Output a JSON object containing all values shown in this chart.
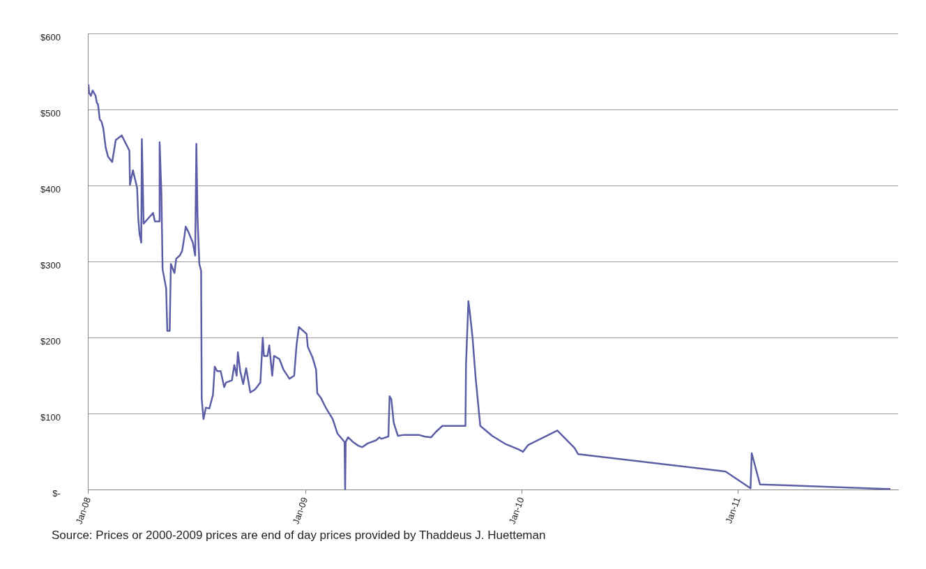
{
  "chart_data": {
    "type": "line",
    "color": "#5b5ea6",
    "grid": "y",
    "legend": false,
    "marker": "none",
    "x": [
      "2008-01-01",
      "2008-01-02",
      "2008-01-05",
      "2008-01-08",
      "2008-01-13",
      "2008-01-15",
      "2008-01-17",
      "2008-01-20",
      "2008-01-23",
      "2008-01-26",
      "2008-01-30",
      "2008-02-03",
      "2008-02-10",
      "2008-02-16",
      "2008-02-26",
      "2008-03-10",
      "2008-03-11",
      "2008-03-16",
      "2008-03-23",
      "2008-03-25",
      "2008-03-27",
      "2008-03-30",
      "2008-03-31",
      "2008-04-03",
      "2008-04-11",
      "2008-04-19",
      "2008-04-22",
      "2008-04-29",
      "2008-04-30",
      "2008-05-03",
      "2008-05-05",
      "2008-05-11",
      "2008-05-13",
      "2008-05-17",
      "2008-05-19",
      "2008-05-25",
      "2008-05-28",
      "2008-06-03",
      "2008-06-07",
      "2008-06-11",
      "2008-06-13",
      "2008-06-17",
      "2008-06-25",
      "2008-06-29",
      "2008-07-01",
      "2008-07-03",
      "2008-07-06",
      "2008-07-09",
      "2008-07-10",
      "2008-07-13",
      "2008-07-17",
      "2008-07-23",
      "2008-07-29",
      "2008-08-01",
      "2008-08-05",
      "2008-08-11",
      "2008-08-17",
      "2008-08-20",
      "2008-08-30",
      "2008-09-03",
      "2008-09-07",
      "2008-09-09",
      "2008-09-13",
      "2008-09-18",
      "2008-09-23",
      "2008-09-30",
      "2008-10-08",
      "2008-10-17",
      "2008-10-21",
      "2008-10-23",
      "2008-10-29",
      "2008-11-01",
      "2008-11-06",
      "2008-11-09",
      "2008-11-18",
      "2008-11-25",
      "2008-12-05",
      "2008-12-13",
      "2008-12-17",
      "2008-12-21",
      "2009-01-03",
      "2009-01-05",
      "2009-01-13",
      "2009-01-19",
      "2009-01-21",
      "2009-01-27",
      "2009-02-05",
      "2009-02-16",
      "2009-02-24",
      "2009-03-08",
      "2009-03-09",
      "2009-03-10",
      "2009-03-14",
      "2009-03-22",
      "2009-03-31",
      "2009-04-07",
      "2009-04-16",
      "2009-04-30",
      "2009-05-06",
      "2009-05-09",
      "2009-05-21",
      "2009-05-23",
      "2009-05-26",
      "2009-05-30",
      "2009-06-06",
      "2009-06-15",
      "2009-07-12",
      "2009-07-21",
      "2009-08-01",
      "2009-08-09",
      "2009-08-20",
      "2009-09-28",
      "2009-09-29",
      "2009-10-03",
      "2009-10-05",
      "2009-10-10",
      "2009-10-15",
      "2009-10-23",
      "2009-11-12",
      "2009-12-05",
      "2009-12-27",
      "2010-01-03",
      "2010-01-12",
      "2010-02-07",
      "2010-03-02",
      "2010-03-31",
      "2010-04-06",
      "2010-12-11",
      "2011-01-22",
      "2011-01-24",
      "2011-02-07",
      "2011-03-16",
      "2011-09-15"
    ],
    "values": [
      533,
      522,
      518,
      525,
      518,
      509,
      507,
      487,
      484,
      475,
      450,
      438,
      431,
      460,
      466,
      446,
      401,
      420,
      397,
      357,
      337,
      325,
      461,
      350,
      357,
      364,
      353,
      353,
      457,
      390,
      290,
      265,
      209,
      209,
      297,
      285,
      304,
      308,
      314,
      334,
      346,
      340,
      325,
      308,
      455,
      357,
      297,
      288,
      120,
      93,
      108,
      107,
      125,
      162,
      156,
      156,
      135,
      141,
      144,
      164,
      150,
      181,
      156,
      139,
      160,
      128,
      132,
      141,
      200,
      176,
      176,
      190,
      150,
      176,
      172,
      158,
      146,
      150,
      190,
      214,
      205,
      188,
      174,
      158,
      127,
      121,
      107,
      93,
      74,
      63,
      0,
      63,
      69,
      63,
      58,
      56,
      61,
      65,
      69,
      67,
      70,
      123,
      119,
      88,
      71,
      72,
      72,
      70,
      69,
      76,
      84,
      84,
      166,
      248,
      236,
      200,
      149,
      84,
      71,
      60,
      53,
      50,
      59,
      69,
      78,
      55,
      47,
      24,
      2,
      48,
      7,
      6,
      1
    ],
    "xlim": [
      "2008-01-01",
      "2011-09-28"
    ],
    "xticks": [
      {
        "value": "2008-01-01",
        "label": "Jan-08"
      },
      {
        "value": "2009-01-01",
        "label": "Jan-09"
      },
      {
        "value": "2010-01-01",
        "label": "Jan-10"
      },
      {
        "value": "2011-01-01",
        "label": "Jan-11"
      }
    ],
    "ylim": [
      0,
      600
    ],
    "yticks": [
      {
        "value": 0,
        "label": "$-"
      },
      {
        "value": 100,
        "label": "$100"
      },
      {
        "value": 200,
        "label": "$200"
      },
      {
        "value": 300,
        "label": "$300"
      },
      {
        "value": 400,
        "label": "$400"
      },
      {
        "value": 500,
        "label": "$500"
      },
      {
        "value": 600,
        "label": "$600"
      }
    ],
    "annotations": [
      "Source: Prices or 2000-2009 prices are end of day prices provided by Thaddeus J. Huetteman"
    ]
  }
}
